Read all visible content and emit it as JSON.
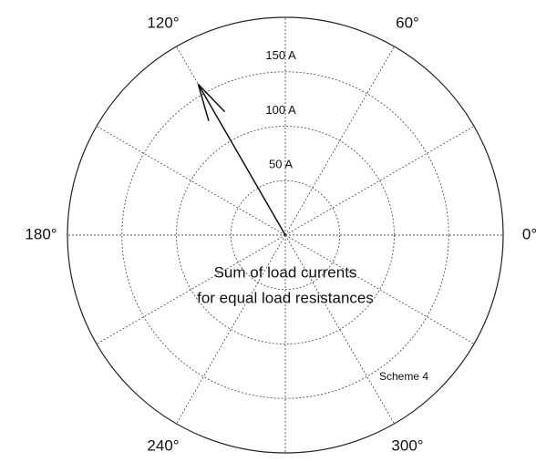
{
  "chart_data": {
    "type": "polar",
    "annotation": [
      "Sum of load currents",
      "for equal load resistances"
    ],
    "note": "Scheme 4",
    "rlim": [
      0,
      200
    ],
    "rticks": [
      {
        "value": 50,
        "label": "50 A"
      },
      {
        "value": 100,
        "label": "100 A"
      },
      {
        "value": 150,
        "label": "150 A"
      }
    ],
    "theta_grid": [
      0,
      30,
      60,
      90,
      120,
      150,
      180,
      210,
      240,
      270,
      300,
      330
    ],
    "thetaticks": [
      {
        "value": 0,
        "label": "0°"
      },
      {
        "value": 60,
        "label": "60°"
      },
      {
        "value": 120,
        "label": "120°"
      },
      {
        "value": 180,
        "label": "180°"
      },
      {
        "value": 240,
        "label": "240°"
      },
      {
        "value": 300,
        "label": "300°"
      }
    ],
    "vectors": [
      {
        "theta": 120,
        "r": 160,
        "color": "#111111"
      }
    ]
  }
}
